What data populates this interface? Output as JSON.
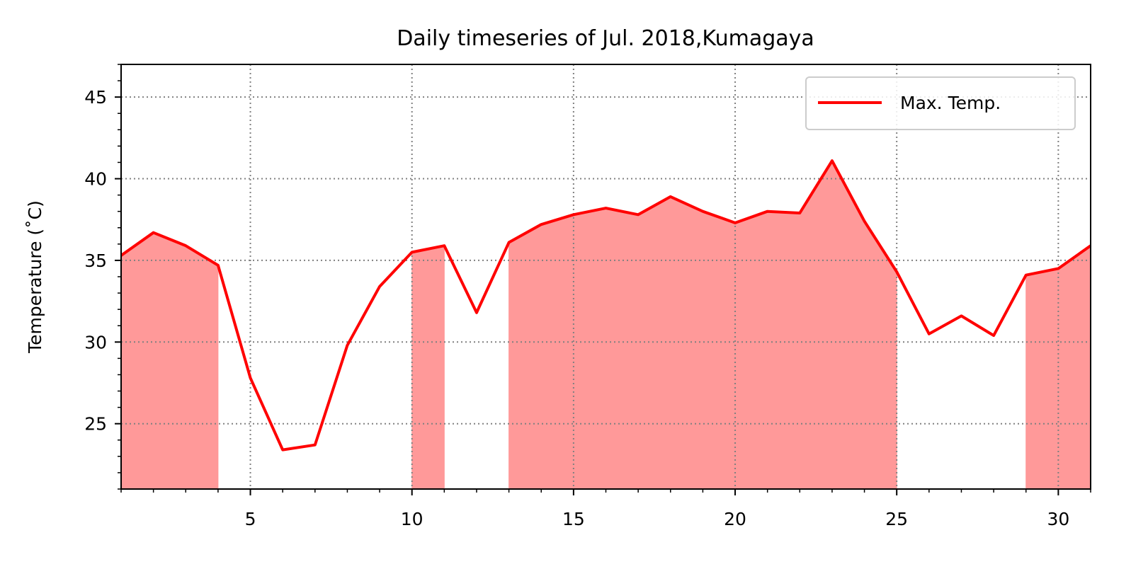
{
  "chart_data": {
    "type": "line",
    "title": "Daily timeseries of Jul. 2018,Kumagaya",
    "xlabel": "",
    "ylabel": "Temperature (˚C)",
    "xlim": [
      1,
      31
    ],
    "ylim": [
      21,
      47
    ],
    "x_ticks": [
      5,
      10,
      15,
      20,
      25,
      30
    ],
    "y_ticks": [
      25,
      30,
      35,
      40,
      45
    ],
    "grid": true,
    "legend_position": "top-right",
    "fill_threshold": 34,
    "colors": {
      "line": "#ff0000",
      "fill": "#ff9999",
      "grid": "#808080"
    },
    "series": [
      {
        "name": "Max. Temp.",
        "x": [
          1,
          2,
          3,
          4,
          5,
          6,
          7,
          8,
          9,
          10,
          11,
          12,
          13,
          14,
          15,
          16,
          17,
          18,
          19,
          20,
          21,
          22,
          23,
          24,
          25,
          26,
          27,
          28,
          29,
          30,
          31
        ],
        "values": [
          35.3,
          36.7,
          35.9,
          34.7,
          27.8,
          23.4,
          23.7,
          29.8,
          33.4,
          35.5,
          35.9,
          31.8,
          36.1,
          37.2,
          37.8,
          38.2,
          37.8,
          38.9,
          38.0,
          37.3,
          38.0,
          37.9,
          41.1,
          37.4,
          34.3,
          30.5,
          31.6,
          30.4,
          34.1,
          34.5,
          35.9
        ]
      }
    ]
  }
}
